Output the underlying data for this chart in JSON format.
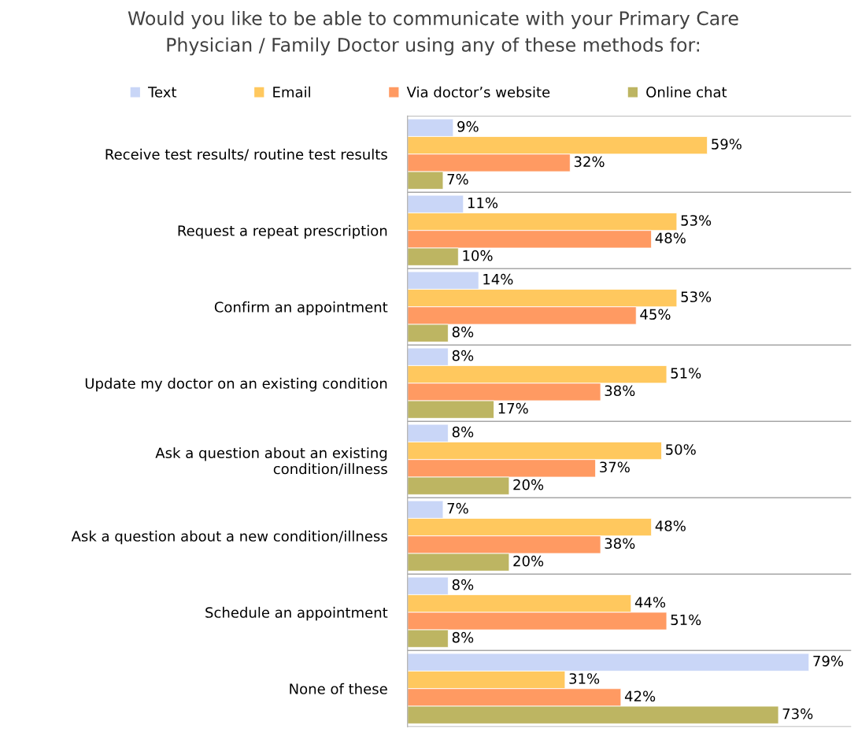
{
  "chart_data": {
    "type": "bar",
    "orientation": "horizontal",
    "title": "Would you like to be able to communicate with your Primary Care\nPhysician / Family Doctor using any of these methods for:",
    "categories": [
      "Receive test results/ routine test results",
      "Request a repeat prescription",
      "Confirm an appointment",
      "Update my doctor on an existing condition",
      "Ask a question about an existing\ncondition/illness",
      "Ask a question about a new condition/illness",
      "Schedule an appointment",
      "None of these"
    ],
    "series": [
      {
        "name": "Text",
        "color": "#c9d6f7",
        "values": [
          9,
          11,
          14,
          8,
          8,
          7,
          8,
          79
        ],
        "value_labels": [
          "9%",
          "11%",
          "14%",
          "8%",
          "8%",
          "7%",
          "8%",
          "79%"
        ]
      },
      {
        "name": "Email",
        "color": "#ffc85e",
        "values": [
          59,
          53,
          53,
          51,
          50,
          48,
          44,
          31
        ],
        "value_labels": [
          "59%",
          "53%",
          "53%",
          "51%",
          "50%",
          "48%",
          "44%",
          "31%"
        ]
      },
      {
        "name": "Via doctor’s website",
        "color": "#ff9a62",
        "values": [
          32,
          48,
          45,
          38,
          37,
          38,
          51,
          42
        ],
        "value_labels": [
          "32%",
          "48%",
          "45%",
          "38%",
          "37%",
          "38%",
          "51%",
          "42%"
        ]
      },
      {
        "name": "Online chat",
        "color": "#bdb562",
        "values": [
          7,
          10,
          8,
          17,
          20,
          20,
          8,
          73
        ],
        "value_labels": [
          "7%",
          "10%",
          "8%",
          "17%",
          "20%",
          "20%",
          "8%",
          "73%"
        ]
      }
    ],
    "legend": "top",
    "grid": "y"
  }
}
